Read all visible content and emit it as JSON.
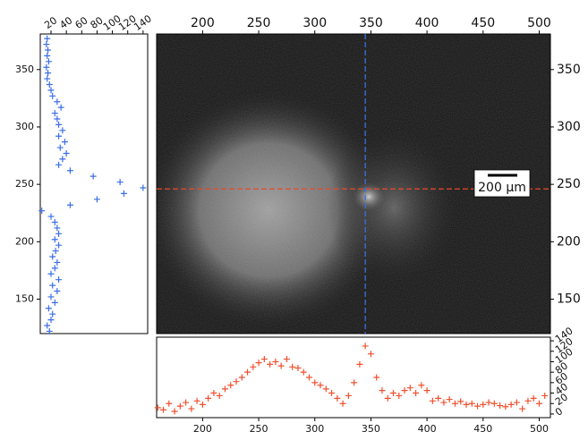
{
  "chart_data": [
    {
      "type": "image",
      "xlim": [
        159,
        510
      ],
      "ylim": [
        120,
        381
      ],
      "xticks": [
        200,
        250,
        300,
        350,
        400,
        450,
        500
      ],
      "yticks": [
        150,
        200,
        250,
        300,
        350
      ],
      "xaxis": "top",
      "yaxis": "right",
      "crosshair_x": 345,
      "crosshair_x_color": "#3a6ee8",
      "crosshair_y": 246,
      "crosshair_y_color": "#e8492a",
      "scale_bar_label": "200 µm"
    },
    {
      "type": "scatter",
      "color": "#f0502e",
      "xaxis": "bottom",
      "yaxis": "right",
      "xlim": [
        159,
        510
      ],
      "ylim": [
        -7,
        147
      ],
      "xticks": [
        200,
        250,
        300,
        350,
        400,
        450,
        500
      ],
      "yticks": [
        0,
        20,
        40,
        60,
        80,
        100,
        120,
        140
      ],
      "x": [
        160,
        165,
        170,
        175,
        180,
        185,
        190,
        195,
        200,
        205,
        210,
        215,
        220,
        225,
        230,
        235,
        240,
        245,
        250,
        255,
        260,
        265,
        270,
        275,
        280,
        285,
        290,
        295,
        300,
        305,
        310,
        315,
        320,
        325,
        330,
        335,
        340,
        345,
        350,
        355,
        360,
        365,
        370,
        375,
        380,
        385,
        390,
        395,
        400,
        405,
        410,
        415,
        420,
        425,
        430,
        435,
        440,
        445,
        450,
        455,
        460,
        465,
        470,
        475,
        480,
        485,
        490,
        495,
        500,
        505
      ],
      "values": [
        12,
        8,
        20,
        5,
        15,
        22,
        10,
        25,
        18,
        30,
        40,
        35,
        48,
        55,
        62,
        70,
        80,
        90,
        98,
        105,
        95,
        100,
        92,
        105,
        90,
        88,
        80,
        70,
        60,
        55,
        48,
        40,
        30,
        20,
        35,
        60,
        95,
        130,
        115,
        70,
        45,
        30,
        40,
        35,
        45,
        50,
        40,
        55,
        45,
        25,
        30,
        22,
        28,
        20,
        24,
        18,
        20,
        15,
        18,
        22,
        20,
        16,
        14,
        18,
        22,
        10,
        25,
        30,
        20,
        35
      ]
    },
    {
      "type": "scatter",
      "orientation": "horizontal",
      "color": "#3a6ee8",
      "xaxis": "top",
      "yaxis": "left",
      "xlim": [
        6,
        146
      ],
      "ylim": [
        120,
        381
      ],
      "xticks": [
        20,
        40,
        60,
        80,
        100,
        120,
        140
      ],
      "yticks": [
        150,
        200,
        250,
        300,
        350
      ],
      "y": [
        122,
        127,
        132,
        137,
        142,
        147,
        152,
        157,
        162,
        167,
        172,
        177,
        182,
        187,
        192,
        197,
        202,
        207,
        212,
        217,
        222,
        227,
        232,
        237,
        242,
        247,
        252,
        257,
        262,
        267,
        272,
        277,
        282,
        287,
        292,
        297,
        302,
        307,
        312,
        317,
        322,
        327,
        332,
        337,
        342,
        347,
        352,
        357,
        362,
        367,
        372,
        377
      ],
      "values": [
        18,
        15,
        20,
        22,
        17,
        25,
        20,
        28,
        22,
        30,
        20,
        25,
        28,
        22,
        26,
        30,
        25,
        30,
        28,
        25,
        20,
        8,
        45,
        80,
        115,
        140,
        110,
        75,
        45,
        30,
        35,
        40,
        32,
        38,
        30,
        35,
        30,
        28,
        25,
        33,
        28,
        22,
        20,
        18,
        15,
        16,
        14,
        17,
        15,
        16,
        14,
        15
      ]
    }
  ]
}
